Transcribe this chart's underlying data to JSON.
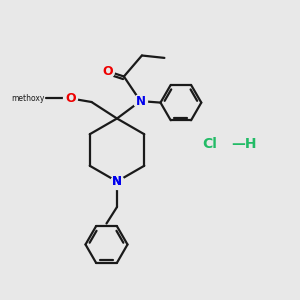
{
  "background_color": "#e8e8e8",
  "bond_color": "#1a1a1a",
  "nitrogen_color": "#0000ee",
  "oxygen_color": "#ee0000",
  "hcl_color": "#22bb66",
  "figsize": [
    3.0,
    3.0
  ],
  "dpi": 100,
  "methoxy_label": "methoxy",
  "o_label": "O",
  "n_label": "N",
  "hcl_label": "Cl—H"
}
